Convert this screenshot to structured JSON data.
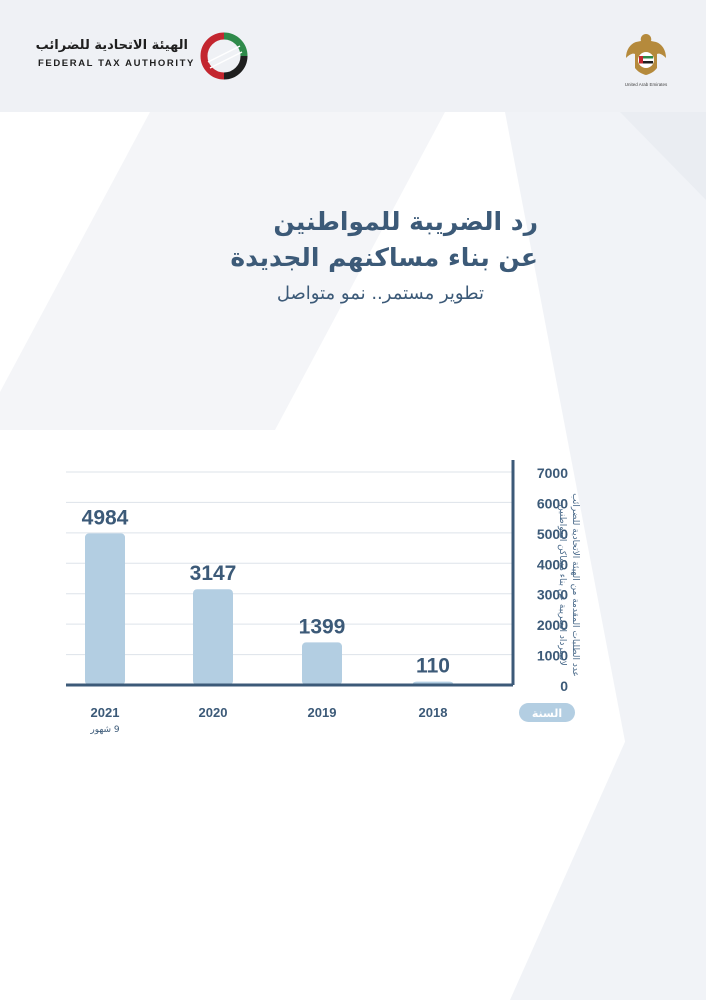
{
  "header": {
    "authority_name_ar": "الهيئة الاتحادية للضرائب",
    "authority_name_en": "FEDERAL TAX AUTHORITY",
    "emblem_caption": "United Arab Emirates",
    "colors": {
      "green": "#2f8a4a",
      "red": "#c3262f",
      "black": "#1f1f1f"
    }
  },
  "title_line1": "رد الضريبة للمواطنين",
  "title_line2": "عن بناء مساكنهم الجديدة",
  "subtitle": "تطوير مستمر.. نمو متواصل",
  "chart_data": {
    "type": "bar",
    "categories": [
      "2021",
      "2020",
      "2019",
      "2018"
    ],
    "category_notes": {
      "2021": "9 شهور"
    },
    "values": [
      4984,
      3147,
      1399,
      110
    ],
    "ylim": [
      0,
      7000
    ],
    "yticks": [
      0,
      1000,
      2000,
      3000,
      4000,
      5000,
      6000,
      7000
    ],
    "ylabel": "عدد الطلبات المقدمة من الهيئة الاتحادية للضرائب لاسترداد الضريبة عن بناء مساكن المواطنين",
    "xlabel": "السنة",
    "grid": true,
    "y_axis_position": "right",
    "colors": {
      "bar": "#b3cee2",
      "axis": "#3c5a78",
      "value_label": "#3c5a78",
      "grid": "#dde3ea",
      "xlabel_badge": "#b3cee2"
    }
  }
}
